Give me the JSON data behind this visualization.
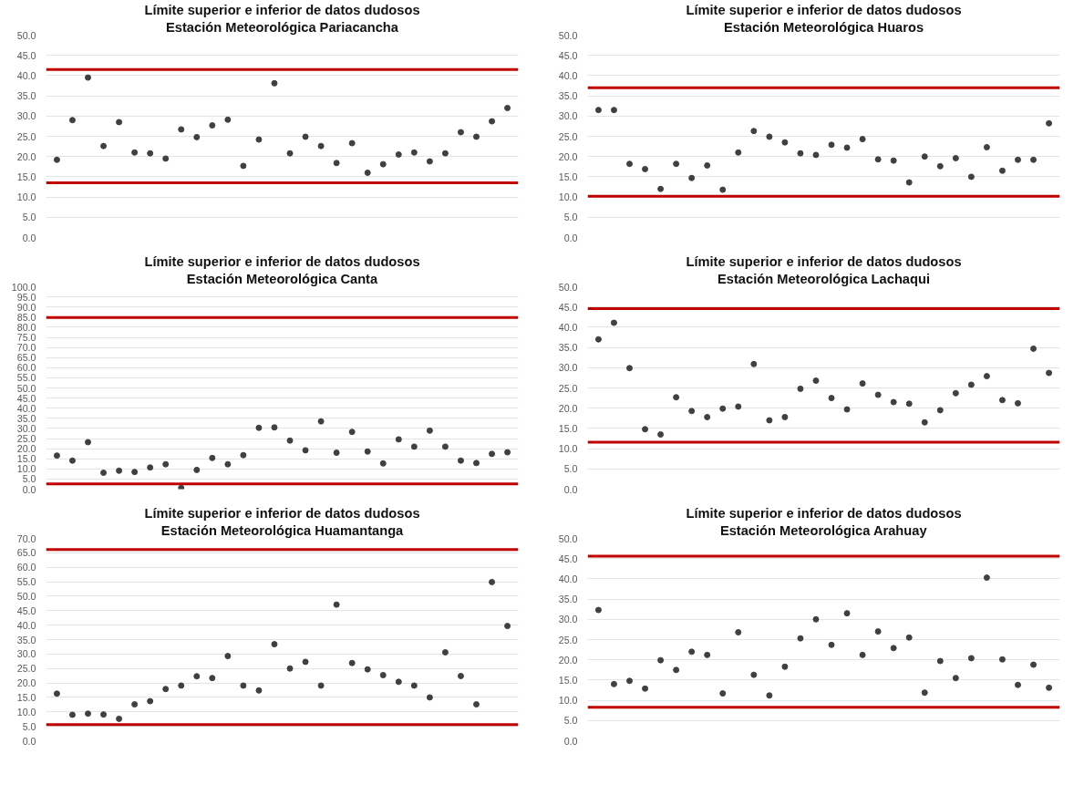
{
  "chart_data": [
    {
      "type": "scatter",
      "title": "Límite superior e inferior de datos dudosos",
      "subtitle": "Estación Meteorológica Pariacancha",
      "categories": [
        null,
        null,
        null,
        null,
        null,
        null,
        null,
        null,
        null,
        null,
        null,
        null,
        null,
        null,
        null,
        null,
        null,
        null,
        null,
        null,
        null,
        null,
        null,
        null,
        null,
        null,
        null,
        null,
        null,
        null
      ],
      "series": [
        {
          "color": "#404040",
          "values": [
            19.2,
            29,
            39.5,
            22.6,
            28.5,
            21,
            20.8,
            19.5,
            26.7,
            24.8,
            27.7,
            29.1,
            17.7,
            24.2,
            38.1,
            20.8,
            24.9,
            22.6,
            18.4,
            23.3,
            16,
            18.1,
            20.5,
            21,
            18.8,
            20.8,
            26,
            24.9,
            28.7,
            32
          ]
        }
      ],
      "ylim": [
        0,
        50
      ],
      "yticks": [
        {
          "value": 0,
          "label": "0.0"
        },
        {
          "value": 5,
          "label": "5.0"
        },
        {
          "value": 10,
          "label": "10.0"
        },
        {
          "value": 15,
          "label": "15.0"
        },
        {
          "value": 20,
          "label": "20.0"
        },
        {
          "value": 25,
          "label": "25.0"
        },
        {
          "value": 30,
          "label": "30.0"
        },
        {
          "value": 35,
          "label": "35.0"
        },
        {
          "value": 40,
          "label": "40.0"
        },
        {
          "value": 45,
          "label": "45.0"
        },
        {
          "value": 50,
          "label": "50.0"
        }
      ],
      "ref_lines": [
        {
          "axis": "y",
          "value": 41.5,
          "color": "#c00000"
        },
        {
          "axis": "y",
          "value": 13.5,
          "color": "#c00000"
        }
      ],
      "marker": "circle",
      "grid": "y",
      "tick_labels": "y"
    },
    {
      "type": "scatter",
      "title": "Límite superior e inferior de datos dudosos",
      "subtitle": "Estación Meteorológica Huaros",
      "categories": [
        null,
        null,
        null,
        null,
        null,
        null,
        null,
        null,
        null,
        null,
        null,
        null,
        null,
        null,
        null,
        null,
        null,
        null,
        null,
        null,
        null,
        null,
        null,
        null,
        null,
        null,
        null,
        null,
        null,
        null
      ],
      "series": [
        {
          "color": "#404040",
          "values": [
            31.5,
            31.5,
            18.2,
            16.9,
            12,
            18.2,
            14.7,
            17.8,
            11.8,
            21,
            26.3,
            24.9,
            23.5,
            20.8,
            20.4,
            22.9,
            22.2,
            24.3,
            19.3,
            19,
            13.6,
            20,
            17.6,
            19.6,
            15,
            22.3,
            16.5,
            19.2,
            19.2,
            28.2
          ]
        }
      ],
      "ylim": [
        0,
        50
      ],
      "yticks": [
        {
          "value": 0,
          "label": "0.0"
        },
        {
          "value": 5,
          "label": "5.0"
        },
        {
          "value": 10,
          "label": "10.0"
        },
        {
          "value": 15,
          "label": "15.0"
        },
        {
          "value": 20,
          "label": "20.0"
        },
        {
          "value": 25,
          "label": "25.0"
        },
        {
          "value": 30,
          "label": "30.0"
        },
        {
          "value": 35,
          "label": "35.0"
        },
        {
          "value": 40,
          "label": "40.0"
        },
        {
          "value": 45,
          "label": "45.0"
        },
        {
          "value": 50,
          "label": "50.0"
        }
      ],
      "ref_lines": [
        {
          "axis": "y",
          "value": 37,
          "color": "#c00000"
        },
        {
          "axis": "y",
          "value": 10.2,
          "color": "#c00000"
        }
      ],
      "marker": "circle",
      "grid": "y",
      "tick_labels": "y"
    },
    {
      "type": "scatter",
      "title": "Límite superior e inferior de datos dudosos",
      "subtitle": "Estación Meteorológica Canta",
      "categories": [
        null,
        null,
        null,
        null,
        null,
        null,
        null,
        null,
        null,
        null,
        null,
        null,
        null,
        null,
        null,
        null,
        null,
        null,
        null,
        null,
        null,
        null,
        null,
        null,
        null,
        null,
        null,
        null,
        null,
        null
      ],
      "series": [
        {
          "color": "#404040",
          "values": [
            16.6,
            14.1,
            23.2,
            8.1,
            9.1,
            8.5,
            10.7,
            12.3,
            0.6,
            9.5,
            15.4,
            12.3,
            16.8,
            30.3,
            30.5,
            24,
            19.2,
            33.5,
            18,
            28.3,
            18.6,
            12.7,
            24.6,
            21,
            28.9,
            21,
            14.1,
            12.9,
            17.4,
            18.2
          ]
        }
      ],
      "ylim": [
        0,
        100
      ],
      "yticks": [
        {
          "value": 0,
          "label": "0.0"
        },
        {
          "value": 5,
          "label": "5.0"
        },
        {
          "value": 10,
          "label": "10.0"
        },
        {
          "value": 15,
          "label": "15.0"
        },
        {
          "value": 20,
          "label": "20.0"
        },
        {
          "value": 25,
          "label": "25.0"
        },
        {
          "value": 30,
          "label": "30.0"
        },
        {
          "value": 35,
          "label": "35.0"
        },
        {
          "value": 40,
          "label": "40.0"
        },
        {
          "value": 45,
          "label": "45.0"
        },
        {
          "value": 50,
          "label": "50.0"
        },
        {
          "value": 55,
          "label": "55.0"
        },
        {
          "value": 60,
          "label": "60.0"
        },
        {
          "value": 65,
          "label": "65.0"
        },
        {
          "value": 70,
          "label": "70.0"
        },
        {
          "value": 75,
          "label": "75.0"
        },
        {
          "value": 80,
          "label": "80.0"
        },
        {
          "value": 85,
          "label": "85.0"
        },
        {
          "value": 90,
          "label": "90.0"
        },
        {
          "value": 95,
          "label": "95.0"
        },
        {
          "value": 100,
          "label": "100.0"
        }
      ],
      "ref_lines": [
        {
          "axis": "y",
          "value": 84.8,
          "color": "#c00000"
        },
        {
          "axis": "y",
          "value": 2.6,
          "color": "#c00000"
        }
      ],
      "marker": "circle",
      "grid": "y",
      "tick_labels": "y"
    },
    {
      "type": "scatter",
      "title": "Límite superior e inferior de datos dudosos",
      "subtitle": "Estación Meteorológica Lachaqui",
      "categories": [
        null,
        null,
        null,
        null,
        null,
        null,
        null,
        null,
        null,
        null,
        null,
        null,
        null,
        null,
        null,
        null,
        null,
        null,
        null,
        null,
        null,
        null,
        null,
        null,
        null,
        null,
        null,
        null,
        null,
        null
      ],
      "series": [
        {
          "color": "#404040",
          "values": [
            37,
            41.1,
            29.9,
            14.8,
            13.5,
            22.7,
            19.3,
            17.8,
            19.9,
            20.4,
            30.9,
            17,
            17.8,
            24.8,
            26.8,
            22.5,
            19.7,
            26.1,
            23.3,
            21.5,
            21.1,
            16.5,
            19.5,
            23.7,
            25.8,
            27.9,
            22,
            21.2,
            34.7,
            28.7
          ]
        }
      ],
      "ylim": [
        0,
        50
      ],
      "yticks": [
        {
          "value": 0,
          "label": "0.0"
        },
        {
          "value": 5,
          "label": "5.0"
        },
        {
          "value": 10,
          "label": "10.0"
        },
        {
          "value": 15,
          "label": "15.0"
        },
        {
          "value": 20,
          "label": "20.0"
        },
        {
          "value": 25,
          "label": "25.0"
        },
        {
          "value": 30,
          "label": "30.0"
        },
        {
          "value": 35,
          "label": "35.0"
        },
        {
          "value": 40,
          "label": "40.0"
        },
        {
          "value": 45,
          "label": "45.0"
        },
        {
          "value": 50,
          "label": "50.0"
        }
      ],
      "ref_lines": [
        {
          "axis": "y",
          "value": 44.6,
          "color": "#c00000"
        },
        {
          "axis": "y",
          "value": 11.6,
          "color": "#c00000"
        }
      ],
      "marker": "circle",
      "grid": "y",
      "tick_labels": "y"
    },
    {
      "type": "scatter",
      "title": "Límite superior e inferior de datos dudosos",
      "subtitle": "Estación Meteorológica Huamantanga",
      "categories": [
        null,
        null,
        null,
        null,
        null,
        null,
        null,
        null,
        null,
        null,
        null,
        null,
        null,
        null,
        null,
        null,
        null,
        null,
        null,
        null,
        null,
        null,
        null,
        null,
        null,
        null,
        null,
        null,
        null,
        null
      ],
      "series": [
        {
          "color": "#404040",
          "values": [
            16.3,
            9,
            9.4,
            9.1,
            7.6,
            12.6,
            13.7,
            17.9,
            19.1,
            22.3,
            21.7,
            29.3,
            19.1,
            17.4,
            33.4,
            25,
            27.3,
            19.1,
            47.1,
            26.9,
            24.7,
            22.7,
            20.4,
            19.1,
            15,
            30.6,
            22.4,
            12.6,
            54.9,
            39.7
          ]
        }
      ],
      "ylim": [
        0,
        70
      ],
      "yticks": [
        {
          "value": 0,
          "label": "0.0"
        },
        {
          "value": 5,
          "label": "5.0"
        },
        {
          "value": 10,
          "label": "10.0"
        },
        {
          "value": 15,
          "label": "15.0"
        },
        {
          "value": 20,
          "label": "20.0"
        },
        {
          "value": 25,
          "label": "25.0"
        },
        {
          "value": 30,
          "label": "30.0"
        },
        {
          "value": 35,
          "label": "35.0"
        },
        {
          "value": 40,
          "label": "40.0"
        },
        {
          "value": 45,
          "label": "45.0"
        },
        {
          "value": 50,
          "label": "50.0"
        },
        {
          "value": 55,
          "label": "55.0"
        },
        {
          "value": 60,
          "label": "60.0"
        },
        {
          "value": 65,
          "label": "65.0"
        },
        {
          "value": 70,
          "label": "70.0"
        }
      ],
      "ref_lines": [
        {
          "axis": "y",
          "value": 66.1,
          "color": "#c00000"
        },
        {
          "axis": "y",
          "value": 5.6,
          "color": "#c00000"
        }
      ],
      "marker": "circle",
      "grid": "y",
      "tick_labels": "y"
    },
    {
      "type": "scatter",
      "title": "Límite superior e inferior de datos dudosos",
      "subtitle": "Estación Meteorológica Arahuay",
      "categories": [
        null,
        null,
        null,
        null,
        null,
        null,
        null,
        null,
        null,
        null,
        null,
        null,
        null,
        null,
        null,
        null,
        null,
        null,
        null,
        null,
        null,
        null,
        null,
        null,
        null,
        null,
        null,
        null,
        null,
        null
      ],
      "series": [
        {
          "color": "#404040",
          "values": [
            32.3,
            14,
            14.8,
            12.9,
            19.9,
            17.5,
            22,
            21.2,
            11.7,
            26.8,
            16.3,
            11.2,
            18.3,
            25.3,
            30,
            23.7,
            31.5,
            21.2,
            27,
            22.9,
            25.5,
            11.9,
            19.7,
            15.5,
            20.4,
            40.3,
            20.1,
            13.8,
            18.8,
            13.1
          ]
        }
      ],
      "ylim": [
        0,
        50
      ],
      "yticks": [
        {
          "value": 0,
          "label": "0.0"
        },
        {
          "value": 5,
          "label": "5.0"
        },
        {
          "value": 10,
          "label": "10.0"
        },
        {
          "value": 15,
          "label": "15.0"
        },
        {
          "value": 20,
          "label": "20.0"
        },
        {
          "value": 25,
          "label": "25.0"
        },
        {
          "value": 30,
          "label": "30.0"
        },
        {
          "value": 35,
          "label": "35.0"
        },
        {
          "value": 40,
          "label": "40.0"
        },
        {
          "value": 45,
          "label": "45.0"
        },
        {
          "value": 50,
          "label": "50.0"
        }
      ],
      "ref_lines": [
        {
          "axis": "y",
          "value": 45.6,
          "color": "#c00000"
        },
        {
          "axis": "y",
          "value": 8.3,
          "color": "#c00000"
        }
      ],
      "marker": "circle",
      "grid": "y",
      "tick_labels": "y"
    }
  ]
}
